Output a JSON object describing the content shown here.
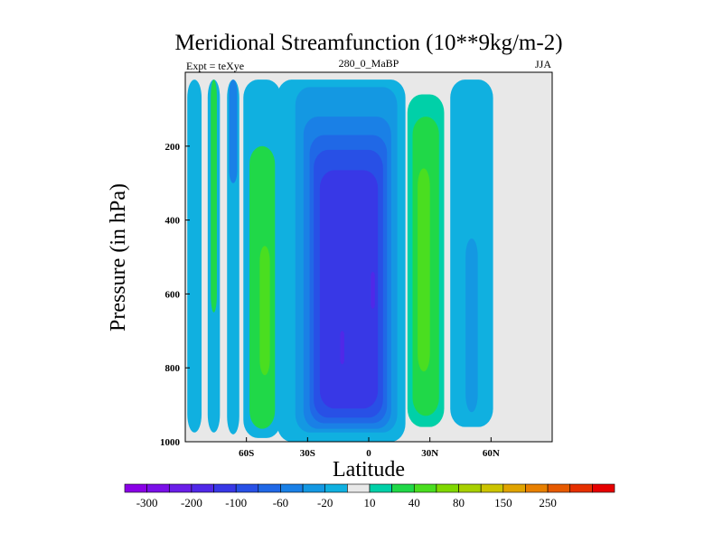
{
  "chart_data": {
    "type": "contour",
    "title": "Meridional Streamfunction (10**9kg/m-2)",
    "subtitle_left": "Expt = teXye",
    "subtitle_center": "280_0_MaBP",
    "subtitle_right": "JJA",
    "xlabel": "Latitude",
    "ylabel": "Pressure (in hPa)",
    "xlim": [
      -90,
      90
    ],
    "ylim": [
      0,
      1000
    ],
    "y_inverted": true,
    "x_ticks": [
      {
        "value": -60,
        "label": "60S"
      },
      {
        "value": -30,
        "label": "30S"
      },
      {
        "value": 0,
        "label": "0"
      },
      {
        "value": 30,
        "label": "30N"
      },
      {
        "value": 60,
        "label": "60N"
      }
    ],
    "y_ticks": [
      {
        "value": 200,
        "label": "200"
      },
      {
        "value": 400,
        "label": "400"
      },
      {
        "value": 600,
        "label": "600"
      },
      {
        "value": 800,
        "label": "800"
      },
      {
        "value": 1000,
        "label": "1000"
      }
    ],
    "background_color": "#e8e8e8",
    "colorbar": {
      "colors": [
        "#8a00e6",
        "#7a10e8",
        "#6a1ee8",
        "#5028e8",
        "#3838e6",
        "#2850e6",
        "#2068e6",
        "#1a80e6",
        "#1498e2",
        "#10b0e0",
        "#e8e8e8",
        "#00d0a8",
        "#20d848",
        "#4ade20",
        "#80d800",
        "#a8d000",
        "#ccc400",
        "#e0a400",
        "#e88000",
        "#e65a00",
        "#e63000",
        "#e60000"
      ],
      "labels": [
        {
          "index": 1,
          "label": "-300"
        },
        {
          "index": 3,
          "label": "-200"
        },
        {
          "index": 5,
          "label": "-100"
        },
        {
          "index": 7,
          "label": "-60"
        },
        {
          "index": 9,
          "label": "-20"
        },
        {
          "index": 11,
          "label": "10"
        },
        {
          "index": 13,
          "label": "40"
        },
        {
          "index": 15,
          "label": "80"
        },
        {
          "index": 17,
          "label": "150"
        },
        {
          "index": 19,
          "label": "250"
        }
      ]
    },
    "regions": [
      {
        "fill": "#10b0e0",
        "lat": [
          -89,
          -82
        ],
        "p": [
          20,
          975
        ]
      },
      {
        "fill": "#10b0e0",
        "lat": [
          -79,
          -73
        ],
        "p": [
          20,
          975
        ]
      },
      {
        "fill": "#20d848",
        "lat": [
          -77.5,
          -74.5
        ],
        "p": [
          20,
          650
        ]
      },
      {
        "fill": "#10b0e0",
        "lat": [
          -69.5,
          -63.5
        ],
        "p": [
          20,
          980
        ]
      },
      {
        "fill": "#1a80e6",
        "lat": [
          -68.5,
          -64.5
        ],
        "p": [
          20,
          300
        ]
      },
      {
        "fill": "#10b0e0",
        "lat": [
          -61.5,
          -43
        ],
        "p": [
          20,
          990
        ]
      },
      {
        "fill": "#20d848",
        "lat": [
          -58.5,
          -46
        ],
        "p": [
          200,
          965
        ]
      },
      {
        "fill": "#4ade20",
        "lat": [
          -53.5,
          -48.5
        ],
        "p": [
          470,
          820
        ]
      },
      {
        "fill": "#10b0e0",
        "lat": [
          -45,
          18
        ],
        "p": [
          20,
          1000
        ]
      },
      {
        "fill": "#1498e2",
        "lat": [
          -36,
          14
        ],
        "p": [
          40,
          975
        ]
      },
      {
        "fill": "#1a80e6",
        "lat": [
          -32,
          11
        ],
        "p": [
          120,
          965
        ]
      },
      {
        "fill": "#2068e6",
        "lat": [
          -29,
          9
        ],
        "p": [
          170,
          950
        ]
      },
      {
        "fill": "#2850e6",
        "lat": [
          -27,
          7
        ],
        "p": [
          210,
          935
        ]
      },
      {
        "fill": "#3838e6",
        "lat": [
          -24,
          4.5
        ],
        "p": [
          265,
          910
        ]
      },
      {
        "fill": "#5028e8",
        "lat": [
          -14,
          -12
        ],
        "p": [
          700,
          790
        ]
      },
      {
        "fill": "#5028e8",
        "lat": [
          1,
          3
        ],
        "p": [
          540,
          640
        ]
      },
      {
        "fill": "#00d0a8",
        "lat": [
          19,
          37
        ],
        "p": [
          60,
          960
        ]
      },
      {
        "fill": "#20d848",
        "lat": [
          21.5,
          34.5
        ],
        "p": [
          120,
          930
        ]
      },
      {
        "fill": "#4ade20",
        "lat": [
          24,
          30
        ],
        "p": [
          260,
          810
        ]
      },
      {
        "fill": "#10b0e0",
        "lat": [
          40,
          61
        ],
        "p": [
          20,
          960
        ]
      },
      {
        "fill": "#1498e2",
        "lat": [
          47.5,
          53.5
        ],
        "p": [
          450,
          920
        ]
      }
    ]
  }
}
